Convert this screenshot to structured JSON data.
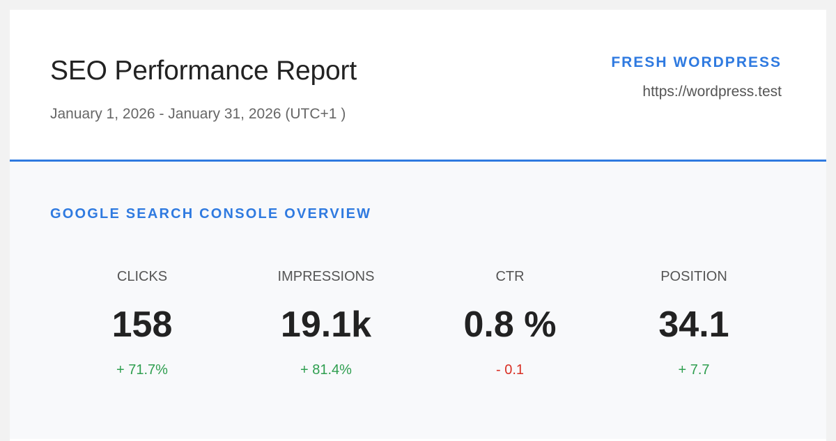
{
  "header": {
    "title": "SEO Performance Report",
    "date_range": "January 1, 2026 - January 31, 2026 (UTC+1 )",
    "site_name": "FRESH WORDPRESS",
    "site_url": "https://wordpress.test"
  },
  "overview": {
    "title": "GOOGLE SEARCH CONSOLE OVERVIEW",
    "metrics": [
      {
        "label": "CLICKS",
        "value": "158",
        "change": "+ 71.7%",
        "trend": "up"
      },
      {
        "label": "IMPRESSIONS",
        "value": "19.1k",
        "change": "+ 81.4%",
        "trend": "up"
      },
      {
        "label": "CTR",
        "value": "0.8 %",
        "change": "- 0.1",
        "trend": "down"
      },
      {
        "label": "POSITION",
        "value": "34.1",
        "change": "+ 7.7",
        "trend": "up"
      }
    ]
  },
  "colors": {
    "accent": "#2f7ae0",
    "positive": "#2e9e4f",
    "negative": "#d93025"
  }
}
